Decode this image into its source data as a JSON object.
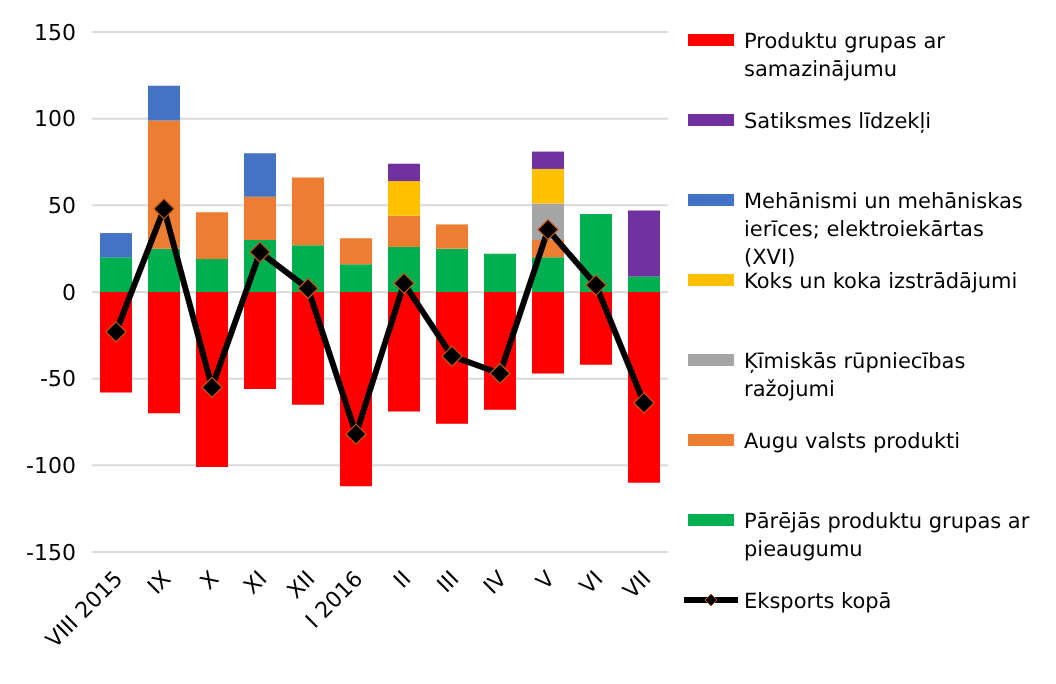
{
  "chart_data": {
    "type": "bar",
    "stacked": true,
    "categories": [
      "VIII 2015",
      "IX",
      "X",
      "XI",
      "XII",
      "I 2016",
      "II",
      "III",
      "IV",
      "V",
      "VI",
      "VII"
    ],
    "series": [
      {
        "name": "Pārējās produktu grupas ar pieaugumu",
        "color": "#00b050",
        "values": [
          20,
          25,
          19,
          30,
          27,
          16,
          26,
          25,
          22,
          20,
          45,
          9
        ]
      },
      {
        "name": "Augu valsts produkti",
        "color": "#ed7d31",
        "values": [
          null,
          74,
          27,
          25,
          39,
          15,
          18,
          14,
          null,
          10,
          null,
          null
        ]
      },
      {
        "name": "Ķīmiskās  rūpniecības ražojumi",
        "color": "#a5a5a5",
        "values": [
          null,
          null,
          null,
          null,
          null,
          null,
          null,
          null,
          null,
          21,
          null,
          null
        ]
      },
      {
        "name": "Koks un koka izstrādājumi",
        "color": "#ffc000",
        "values": [
          null,
          null,
          null,
          null,
          null,
          null,
          20,
          null,
          null,
          20,
          null,
          null
        ]
      },
      {
        "name": "Mehānismi un mehāniskas ierīces;  elektroiekārtas (XVI)",
        "color": "#4472c4",
        "values": [
          14,
          20,
          null,
          25,
          null,
          null,
          null,
          null,
          null,
          null,
          null,
          null
        ]
      },
      {
        "name": "Satiksmes līdzekļi",
        "color": "#7030a0",
        "values": [
          null,
          null,
          null,
          null,
          null,
          null,
          10,
          null,
          null,
          10,
          null,
          38
        ]
      },
      {
        "name": "Produktu grupas ar samazinājumu",
        "color": "#ff0000",
        "values": [
          -58,
          -70,
          -101,
          -56,
          -65,
          -112,
          -69,
          -76,
          -68,
          -47,
          -42,
          -110
        ]
      },
      {
        "name": "Eksports kopā",
        "type": "line",
        "color": "#000000",
        "values": [
          -23,
          48,
          -55,
          23,
          2,
          -82,
          5,
          -37,
          -47,
          36,
          4,
          -64
        ]
      }
    ],
    "ylim": [
      -150,
      150
    ],
    "yticks": [
      -150,
      -100,
      -50,
      0,
      50,
      100,
      150
    ],
    "grid": "y",
    "legend": "right",
    "marker": "diamond"
  }
}
